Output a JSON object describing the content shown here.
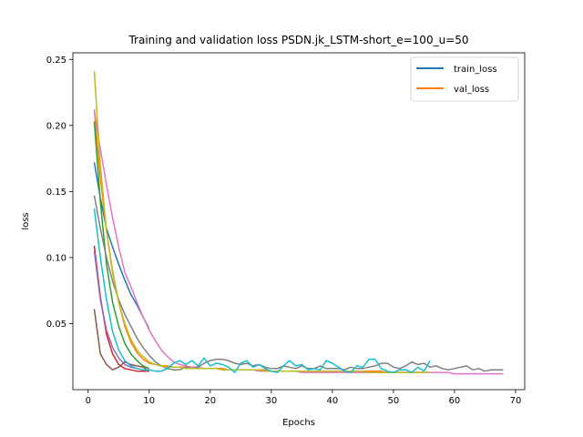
{
  "chart_data": {
    "type": "line",
    "title": "Training and validation loss PSDN.jk_LSTM-short_e=100_u=50",
    "xlabel": "Epochs",
    "ylabel": "loss",
    "xlim": [
      -2.5,
      71.5
    ],
    "ylim": [
      0.0,
      0.255
    ],
    "xticks": [
      0,
      10,
      20,
      30,
      40,
      50,
      60,
      70
    ],
    "yticks": [
      0.05,
      0.1,
      0.15,
      0.2,
      0.25
    ],
    "ytick_labels": [
      "0.05",
      "0.10",
      "0.15",
      "0.20",
      "0.25"
    ],
    "grid": false,
    "legend": {
      "placement": "top-right",
      "entries": [
        {
          "name": "train_loss",
          "color": "#1f77b4"
        },
        {
          "name": "val_loss",
          "color": "#ff7f0e"
        }
      ]
    },
    "series": [
      {
        "color": "#1f77b4",
        "x": [
          1,
          2,
          3,
          4,
          5,
          6,
          7,
          8,
          9,
          10
        ],
        "y": [
          0.172,
          0.145,
          0.122,
          0.108,
          0.095,
          0.083,
          0.072,
          0.064,
          0.055,
          0.046
        ]
      },
      {
        "color": "#ff7f0e",
        "x": [
          1,
          2,
          3,
          4,
          5,
          6,
          7,
          8,
          9,
          10,
          11,
          12,
          13,
          14,
          15,
          16,
          17,
          18,
          19,
          20,
          21,
          22,
          23,
          24,
          25,
          26,
          27,
          28,
          29,
          30,
          31,
          32,
          33,
          34,
          35,
          36,
          37,
          38,
          39,
          40,
          41,
          42,
          43,
          44,
          45,
          46,
          47,
          48,
          49,
          50,
          51,
          52,
          53,
          54,
          55,
          56
        ],
        "y": [
          0.212,
          0.16,
          0.12,
          0.09,
          0.066,
          0.048,
          0.036,
          0.028,
          0.023,
          0.02,
          0.019,
          0.018,
          0.018,
          0.017,
          0.017,
          0.017,
          0.017,
          0.016,
          0.016,
          0.016,
          0.016,
          0.016,
          0.015,
          0.015,
          0.015,
          0.015,
          0.015,
          0.015,
          0.015,
          0.014,
          0.014,
          0.014,
          0.014,
          0.014,
          0.014,
          0.014,
          0.014,
          0.014,
          0.014,
          0.014,
          0.014,
          0.014,
          0.014,
          0.014,
          0.014,
          0.014,
          0.014,
          0.014,
          0.013,
          0.013,
          0.013,
          0.013,
          0.013,
          0.013,
          0.013,
          0.013
        ]
      },
      {
        "color": "#2ca02c",
        "x": [
          1,
          2,
          3,
          4,
          5,
          6,
          7,
          8,
          9,
          10
        ],
        "y": [
          0.203,
          0.142,
          0.095,
          0.066,
          0.048,
          0.035,
          0.027,
          0.022,
          0.018,
          0.016
        ]
      },
      {
        "color": "#d62728",
        "x": [
          1,
          2,
          3,
          4,
          5,
          6,
          7,
          8,
          9,
          10
        ],
        "y": [
          0.109,
          0.07,
          0.042,
          0.027,
          0.019,
          0.016,
          0.015,
          0.014,
          0.014,
          0.014
        ]
      },
      {
        "color": "#9467bd",
        "x": [
          1,
          2,
          3,
          4,
          5,
          6,
          7,
          8,
          9,
          10
        ],
        "y": [
          0.105,
          0.068,
          0.045,
          0.032,
          0.024,
          0.019,
          0.017,
          0.016,
          0.015,
          0.014
        ]
      },
      {
        "color": "#8c564b",
        "x": [
          1,
          2,
          3,
          4,
          5,
          6,
          7,
          8,
          9,
          10
        ],
        "y": [
          0.061,
          0.027,
          0.019,
          0.015,
          0.017,
          0.021,
          0.019,
          0.018,
          0.017,
          0.014
        ]
      },
      {
        "color": "#e377c2",
        "x": [
          1,
          2,
          3,
          4,
          5,
          6,
          7,
          8,
          9,
          10,
          11,
          12,
          13,
          14,
          15,
          16,
          17,
          18,
          19,
          20,
          21,
          22,
          23,
          24,
          25,
          26,
          27,
          28,
          29,
          30,
          31,
          32,
          33,
          34,
          35,
          36,
          37,
          38,
          39,
          40,
          41,
          42,
          43,
          44,
          45,
          46,
          47,
          48,
          49,
          50,
          51,
          52,
          53,
          54,
          55,
          56,
          57,
          58,
          59,
          60,
          61,
          62,
          63,
          64,
          65,
          66,
          67,
          68
        ],
        "y": [
          0.212,
          0.182,
          0.155,
          0.13,
          0.108,
          0.089,
          0.078,
          0.066,
          0.055,
          0.045,
          0.037,
          0.03,
          0.025,
          0.021,
          0.019,
          0.018,
          0.017,
          0.017,
          0.016,
          0.016,
          0.016,
          0.015,
          0.015,
          0.015,
          0.015,
          0.015,
          0.015,
          0.014,
          0.014,
          0.014,
          0.014,
          0.014,
          0.014,
          0.014,
          0.013,
          0.013,
          0.013,
          0.013,
          0.013,
          0.013,
          0.013,
          0.013,
          0.013,
          0.013,
          0.013,
          0.013,
          0.013,
          0.013,
          0.013,
          0.013,
          0.013,
          0.013,
          0.013,
          0.013,
          0.013,
          0.013,
          0.013,
          0.013,
          0.013,
          0.012,
          0.012,
          0.012,
          0.012,
          0.012,
          0.012,
          0.012,
          0.012,
          0.012
        ]
      },
      {
        "color": "#7f7f7f",
        "x": [
          1,
          2,
          3,
          4,
          5,
          6,
          7,
          8,
          9,
          10,
          11,
          12,
          13,
          14,
          15,
          16,
          17,
          18,
          19,
          20,
          21,
          22,
          23,
          24,
          25,
          26,
          27,
          28,
          29,
          30,
          31,
          32,
          33,
          34,
          35,
          36,
          37,
          38,
          39,
          40,
          41,
          42,
          43,
          44,
          45,
          46,
          47,
          48,
          49,
          50,
          51,
          52,
          53,
          54,
          55,
          56,
          57,
          58,
          59,
          60,
          61,
          62,
          63,
          64,
          65,
          66,
          67,
          68
        ],
        "y": [
          0.147,
          0.122,
          0.1,
          0.082,
          0.068,
          0.057,
          0.048,
          0.039,
          0.032,
          0.026,
          0.021,
          0.018,
          0.016,
          0.015,
          0.015,
          0.017,
          0.016,
          0.017,
          0.02,
          0.022,
          0.023,
          0.023,
          0.022,
          0.02,
          0.019,
          0.02,
          0.018,
          0.019,
          0.017,
          0.016,
          0.016,
          0.018,
          0.017,
          0.016,
          0.018,
          0.016,
          0.016,
          0.018,
          0.016,
          0.016,
          0.016,
          0.015,
          0.017,
          0.016,
          0.016,
          0.017,
          0.018,
          0.02,
          0.02,
          0.017,
          0.016,
          0.018,
          0.021,
          0.019,
          0.02,
          0.017,
          0.018,
          0.016,
          0.015,
          0.016,
          0.017,
          0.018,
          0.015,
          0.016,
          0.014,
          0.015,
          0.015,
          0.015
        ]
      },
      {
        "color": "#bcbd22",
        "x": [
          1,
          2,
          3,
          4,
          5,
          6,
          7,
          8,
          9,
          10,
          11,
          12,
          13,
          14,
          15,
          16,
          17,
          18,
          19,
          20,
          21,
          22,
          23,
          24,
          25,
          26,
          27,
          28,
          29,
          30,
          31,
          32,
          33,
          34,
          35,
          36,
          37,
          38,
          39,
          40,
          41,
          42,
          43,
          44,
          45,
          46,
          47,
          48,
          49,
          50,
          51,
          52,
          53,
          54,
          55,
          56
        ],
        "y": [
          0.241,
          0.17,
          0.12,
          0.088,
          0.066,
          0.05,
          0.038,
          0.03,
          0.025,
          0.021,
          0.019,
          0.018,
          0.017,
          0.017,
          0.017,
          0.016,
          0.016,
          0.016,
          0.016,
          0.016,
          0.016,
          0.015,
          0.015,
          0.015,
          0.015,
          0.015,
          0.015,
          0.015,
          0.014,
          0.014,
          0.014,
          0.014,
          0.014,
          0.014,
          0.014,
          0.014,
          0.014,
          0.014,
          0.014,
          0.014,
          0.014,
          0.014,
          0.014,
          0.014,
          0.014,
          0.013,
          0.013,
          0.013,
          0.013,
          0.013,
          0.013,
          0.013,
          0.013,
          0.013,
          0.013,
          0.013
        ]
      },
      {
        "color": "#17becf",
        "x": [
          1,
          2,
          3,
          4,
          5,
          6,
          7,
          8,
          9,
          10,
          11,
          12,
          13,
          14,
          15,
          16,
          17,
          18,
          19,
          20,
          21,
          22,
          23,
          24,
          25,
          26,
          27,
          28,
          29,
          30,
          31,
          32,
          33,
          34,
          35,
          36,
          37,
          38,
          39,
          40,
          41,
          42,
          43,
          44,
          45,
          46,
          47,
          48,
          49,
          50,
          51,
          52,
          53,
          54,
          55,
          56
        ],
        "y": [
          0.137,
          0.1,
          0.068,
          0.044,
          0.03,
          0.022,
          0.018,
          0.016,
          0.015,
          0.015,
          0.014,
          0.014,
          0.016,
          0.02,
          0.022,
          0.019,
          0.022,
          0.018,
          0.024,
          0.018,
          0.02,
          0.019,
          0.017,
          0.013,
          0.02,
          0.022,
          0.017,
          0.019,
          0.016,
          0.014,
          0.013,
          0.018,
          0.022,
          0.018,
          0.019,
          0.015,
          0.016,
          0.015,
          0.022,
          0.02,
          0.017,
          0.014,
          0.013,
          0.018,
          0.017,
          0.023,
          0.023,
          0.016,
          0.014,
          0.013,
          0.015,
          0.015,
          0.013,
          0.017,
          0.014,
          0.022
        ]
      }
    ]
  }
}
